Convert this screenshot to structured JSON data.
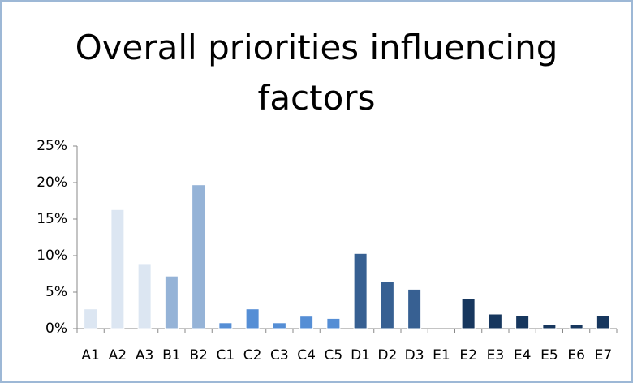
{
  "chart_data": {
    "type": "bar",
    "title": "Overall priorities influencing factors",
    "categories": [
      "A1",
      "A2",
      "A3",
      "B1",
      "B2",
      "C1",
      "C2",
      "C3",
      "C4",
      "C5",
      "D1",
      "D2",
      "D3",
      "E1",
      "E2",
      "E3",
      "E4",
      "E5",
      "E6",
      "E7"
    ],
    "values": [
      2.7,
      16.3,
      8.9,
      7.2,
      19.7,
      0.8,
      2.7,
      0.8,
      1.7,
      1.4,
      10.3,
      6.5,
      5.4,
      0,
      4.1,
      2.0,
      1.8,
      0.5,
      0.5,
      1.8
    ],
    "colors": [
      "#dce6f2",
      "#dce6f2",
      "#dce6f2",
      "#95b3d7",
      "#95b3d7",
      "#558ed5",
      "#558ed5",
      "#558ed5",
      "#558ed5",
      "#558ed5",
      "#376092",
      "#376092",
      "#376092",
      "#17375e",
      "#17375e",
      "#17375e",
      "#17375e",
      "#17375e",
      "#17375e",
      "#17375e"
    ],
    "ylim": [
      0,
      25
    ],
    "yticks": [
      {
        "value": 0,
        "label": "0%"
      },
      {
        "value": 5,
        "label": "5%"
      },
      {
        "value": 10,
        "label": "10%"
      },
      {
        "value": 15,
        "label": "15%"
      },
      {
        "value": 20,
        "label": "20%"
      },
      {
        "value": 25,
        "label": "25%"
      }
    ],
    "grid": false
  }
}
